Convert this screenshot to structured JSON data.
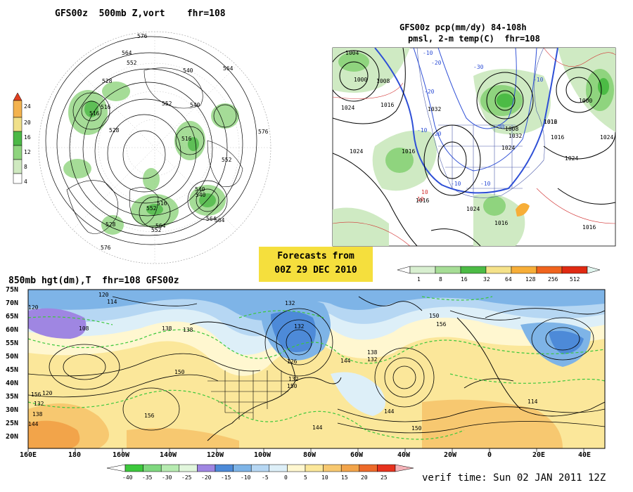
{
  "panels": {
    "vort": {
      "title": "GFS00z  500mb Z,vort    fhr=108",
      "colorbar_ticks": [
        "24",
        "20",
        "16",
        "12",
        "8",
        "4"
      ],
      "colorbar_colors": [
        "#ffffff",
        "#cfe9c0",
        "#8fd47e",
        "#4cb846",
        "#f0e08a",
        "#f3b24e",
        "#e04020"
      ],
      "contour_labels": [
        "576",
        "564",
        "552",
        "540",
        "528",
        "516",
        "552",
        "540",
        "516",
        "564",
        "576",
        "564",
        "552",
        "540",
        "528",
        "516",
        "564",
        "552",
        "528",
        "576",
        "516",
        "540",
        "564",
        "552"
      ]
    },
    "pcp": {
      "title_line1": "GFS00z pcp(mm/dy) 84-108h",
      "title_line2": "pmsl, 2-m temp(C)  fhr=108",
      "isobar_labels": [
        "1004",
        "1000",
        "1008",
        "1016",
        "1024",
        "1024",
        "1032",
        "1016",
        "1016",
        "1016",
        "1024",
        "1000",
        "1024",
        "1016",
        "1016",
        "1024",
        "1008",
        "1012",
        "1016",
        "1032",
        "1024"
      ],
      "temp_labels": [
        "-10",
        "-20",
        "-30",
        "-10",
        "-20",
        "-30",
        "-10",
        "-10",
        "-20",
        "10",
        "10",
        "-10"
      ],
      "colorbar_ticks": [
        "1",
        "8",
        "16",
        "32",
        "64",
        "128",
        "256",
        "512"
      ],
      "colorbar_colors": [
        "#ffffff",
        "#d8efd0",
        "#a6dd96",
        "#4cbb45",
        "#f5e28a",
        "#f7ae38",
        "#f0641e",
        "#e02a12",
        "#e0f5ee"
      ]
    },
    "h850": {
      "title": "850mb hgt(dm),T  fhr=108 GFS00z",
      "lat_labels": [
        "75N",
        "70N",
        "65N",
        "60N",
        "55N",
        "50N",
        "45N",
        "40N",
        "35N",
        "30N",
        "25N",
        "20N"
      ],
      "lon_labels": [
        "160E",
        "180",
        "160W",
        "140W",
        "120W",
        "100W",
        "80W",
        "60W",
        "40W",
        "20W",
        "0",
        "20E",
        "40E"
      ],
      "height_labels": [
        "120",
        "114",
        "108",
        "132",
        "138",
        "150",
        "138",
        "126",
        "132",
        "144",
        "156",
        "150",
        "138",
        "132",
        "144",
        "150",
        "156",
        "144",
        "150",
        "120",
        "132",
        "138",
        "144",
        "156",
        "132",
        "120",
        "114"
      ],
      "colorbar_ticks": [
        "-40",
        "-35",
        "-30",
        "-25",
        "-20",
        "-15",
        "-10",
        "-5",
        "0",
        "5",
        "10",
        "15",
        "20",
        "25"
      ],
      "colorbar_colors": [
        "#3cc83c",
        "#7fd87f",
        "#b6ebb0",
        "#e1f6dc",
        "#9f86e2",
        "#4d8ad8",
        "#7eb4e7",
        "#b6d7f3",
        "#ddeff8",
        "#fff7d0",
        "#fbe79a",
        "#f7c870",
        "#f2a44a",
        "#ed6a2a",
        "#e7321e",
        "#f4b2b8"
      ]
    }
  },
  "forecast": {
    "line1": "Forecasts from",
    "line2": "00Z 29 DEC 2010"
  },
  "verif": {
    "text": "verif time: Sun 02 JAN 2011 12Z"
  }
}
